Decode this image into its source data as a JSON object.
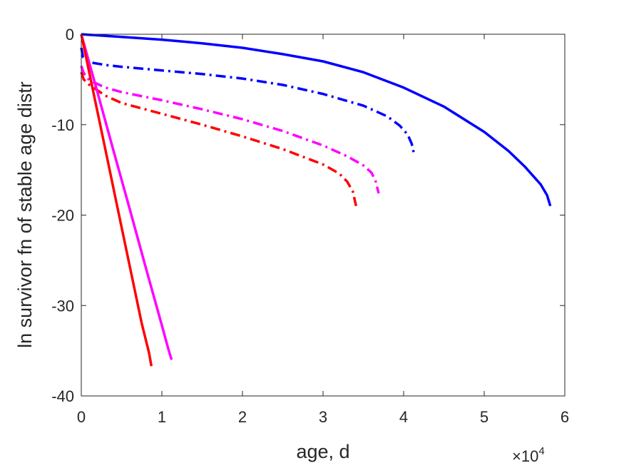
{
  "chart_data": {
    "type": "line",
    "title": "",
    "xlabel": "age, d",
    "ylabel": "ln survivor fn of stable age distr",
    "xlim": [
      0,
      60000
    ],
    "ylim": [
      -40,
      0
    ],
    "x_exponent_label": "×10",
    "x_exponent_power": "4",
    "xticks": [
      0,
      10000,
      20000,
      30000,
      40000,
      50000,
      60000
    ],
    "xtick_labels": [
      "0",
      "1",
      "2",
      "3",
      "4",
      "5",
      "6"
    ],
    "yticks": [
      0,
      -10,
      -20,
      -30,
      -40
    ],
    "ytick_labels": [
      "0",
      "-10",
      "-20",
      "-30",
      "-40"
    ],
    "grid": false,
    "series": [
      {
        "color": "#0000ff",
        "style": "solid",
        "x": [
          0,
          5000,
          10000,
          15000,
          20000,
          25000,
          30000,
          35000,
          40000,
          45000,
          50000,
          53000,
          55000,
          57000,
          57800,
          58200
        ],
        "y": [
          0,
          -0.3,
          -0.6,
          -1.0,
          -1.5,
          -2.2,
          -3.0,
          -4.2,
          -5.9,
          -8.0,
          -10.8,
          -12.9,
          -14.6,
          -16.6,
          -17.8,
          -19.0
        ]
      },
      {
        "color": "#0000ff",
        "style": "dashdot",
        "x": [
          0,
          200,
          1000,
          3000,
          5000,
          10000,
          15000,
          20000,
          25000,
          30000,
          35000,
          38000,
          39500,
          40500,
          41000,
          41300
        ],
        "y": [
          -1.5,
          -2.5,
          -3.1,
          -3.4,
          -3.6,
          -4.0,
          -4.4,
          -4.9,
          -5.6,
          -6.6,
          -7.9,
          -9.1,
          -10.1,
          -11.1,
          -12.1,
          -13.3
        ]
      },
      {
        "color": "#ff00ff",
        "style": "dashdot",
        "x": [
          0,
          300,
          1000,
          3000,
          5000,
          10000,
          15000,
          20000,
          25000,
          30000,
          33000,
          35000,
          36000,
          36500,
          36900
        ],
        "y": [
          -3.5,
          -4.3,
          -5.1,
          -5.9,
          -6.4,
          -7.3,
          -8.3,
          -9.4,
          -10.7,
          -12.3,
          -13.5,
          -14.5,
          -15.3,
          -16.2,
          -17.6
        ]
      },
      {
        "color": "#ff0000",
        "style": "dashdot",
        "x": [
          0,
          300,
          1000,
          3000,
          5000,
          10000,
          15000,
          20000,
          25000,
          30000,
          32000,
          33000,
          33700,
          34100
        ],
        "y": [
          -4.2,
          -5.0,
          -5.6,
          -6.8,
          -7.6,
          -8.8,
          -10.0,
          -11.3,
          -12.7,
          -14.4,
          -15.4,
          -16.3,
          -17.4,
          -19.0
        ]
      },
      {
        "color": "#ff00ff",
        "style": "solid",
        "x": [
          0,
          2000,
          4000,
          6000,
          8000,
          10000,
          10800,
          11200
        ],
        "y": [
          0,
          -6.4,
          -12.9,
          -19.3,
          -25.8,
          -32.2,
          -34.8,
          -36.0
        ]
      },
      {
        "color": "#ff0000",
        "style": "solid",
        "x": [
          0,
          1500,
          3000,
          4500,
          6000,
          7500,
          8400,
          8700
        ],
        "y": [
          0,
          -6.4,
          -12.8,
          -19.2,
          -25.6,
          -32.0,
          -35.2,
          -36.7
        ]
      }
    ]
  }
}
